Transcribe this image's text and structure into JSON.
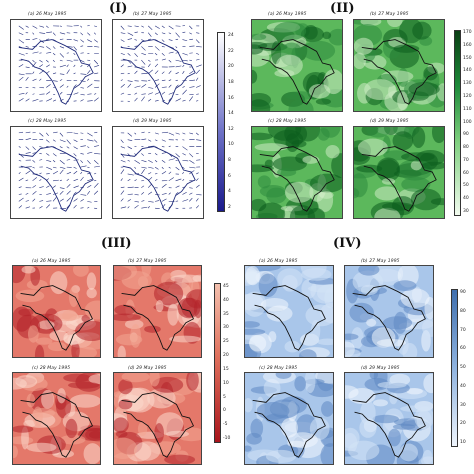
{
  "quadrants": [
    {
      "label": "(I)",
      "panels": [
        "(a) 26 May 1995",
        "(b) 27 May 1995",
        "(c) 28 May 1995",
        "(d) 29 May 1995"
      ],
      "colorbar_ticks": [
        "24",
        "22",
        "20",
        "18",
        "16",
        "14",
        "12",
        "10",
        "8",
        "6",
        "4",
        "2"
      ],
      "colors": {
        "map": "#1f2a7a",
        "bar_top": "#ffffff",
        "bar_bottom": "#1a1a8c"
      }
    },
    {
      "label": "(II)",
      "panels": [
        "(a) 26 May 1995",
        "(b) 27 May 1995",
        "(c) 28 May 1995",
        "(d) 29 May 1995"
      ],
      "colorbar_ticks": [
        "170",
        "160",
        "150",
        "140",
        "130",
        "120",
        "110",
        "100",
        "90",
        "80",
        "70",
        "60",
        "50",
        "40",
        "30"
      ],
      "colors": {
        "light": "#e3f3dd",
        "mid": "#5cb85c",
        "dark": "#0b5d1e"
      }
    },
    {
      "label": "(III)",
      "panels": [
        "(a) 26 May 1995",
        "(b) 27 May 1995",
        "(c) 28 May 1995",
        "(d) 29 May 1995"
      ],
      "colorbar_ticks": [
        "45",
        "40",
        "35",
        "30",
        "25",
        "20",
        "15",
        "10",
        "5",
        "0",
        "-5",
        "-10"
      ],
      "colors": {
        "light": "#f6c7b6",
        "mid": "#e06a55",
        "dark": "#a9141c"
      }
    },
    {
      "label": "(IV)",
      "panels": [
        "(a) 26 May 1995",
        "(b) 27 May 1995",
        "(c) 28 May 1995",
        "(d) 29 May 1995"
      ],
      "colorbar_ticks": [
        "90",
        "80",
        "70",
        "60",
        "50",
        "40",
        "30",
        "20",
        "10"
      ],
      "colors": {
        "light": "#eaf1fb",
        "mid": "#9ebfe4",
        "dark": "#3f6fae"
      }
    }
  ]
}
